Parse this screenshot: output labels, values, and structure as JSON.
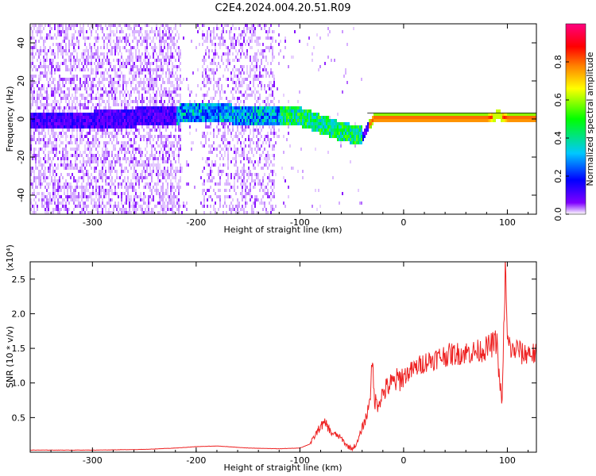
{
  "title": "C2E4.2024.004.20.51.R09",
  "chart_data": [
    {
      "type": "heatmap",
      "xlabel": "Height of straight line (km)",
      "ylabel": "Frequency (Hz)",
      "xlim": [
        -360,
        128
      ],
      "ylim": [
        -50,
        50
      ],
      "xticks": [
        -300,
        -200,
        -100,
        0,
        100
      ],
      "xtick_labels": [
        "-300",
        "-200",
        "-100",
        "0",
        "100"
      ],
      "yticks": [
        -40,
        -20,
        0,
        20,
        40
      ],
      "ytick_labels": [
        "-40",
        "-20",
        "0",
        "20",
        "40"
      ],
      "colorbar": {
        "label": "Normalized spectral amplitude",
        "range": [
          0,
          1
        ],
        "ticks": [
          0.0,
          0.2,
          0.4,
          0.6,
          0.8
        ],
        "tick_labels": [
          "0.0",
          "0.2",
          "0.4",
          "0.6",
          "0.8"
        ],
        "colors": [
          "#ffffff",
          "#7f00ff",
          "#0000ff",
          "#00c8ff",
          "#00ff00",
          "#ffff00",
          "#ff8000",
          "#ff0000",
          "#ff0080"
        ]
      },
      "ridge": {
        "x": [
          -350,
          -300,
          -250,
          -200,
          -150,
          -120,
          -100,
          -80,
          -60,
          -40,
          -30,
          -20,
          0,
          50,
          80,
          90,
          100,
          128
        ],
        "y": [
          0,
          0,
          2,
          4,
          3,
          3,
          2,
          -2,
          -6,
          -8,
          1,
          1,
          1,
          1,
          1,
          3,
          1,
          1
        ]
      },
      "grid": false
    },
    {
      "type": "line",
      "xlabel": "Height of straight line (km)",
      "ylabel": "SNR (10 * v/v)",
      "y_multiplier_label": "(x10⁴)",
      "xlim": [
        -360,
        128
      ],
      "ylim": [
        0,
        2.75
      ],
      "xticks": [
        -300,
        -200,
        -100,
        0,
        100
      ],
      "xtick_labels": [
        "-300",
        "-200",
        "-100",
        "0",
        "100"
      ],
      "yticks": [
        0.5,
        1.0,
        1.5,
        2.0,
        2.5
      ],
      "ytick_labels": [
        "0.5",
        "1.0",
        "1.5",
        "2.0",
        "2.5"
      ],
      "series": [
        {
          "color": "#ee2222",
          "x": [
            -360,
            -300,
            -250,
            -220,
            -200,
            -180,
            -150,
            -120,
            -100,
            -90,
            -80,
            -75,
            -70,
            -65,
            -60,
            -55,
            -50,
            -45,
            -40,
            -35,
            -32,
            -30,
            -28,
            -25,
            -20,
            -15,
            -10,
            -5,
            0,
            10,
            20,
            30,
            40,
            50,
            60,
            70,
            80,
            85,
            90,
            92,
            95,
            98,
            100,
            105,
            110,
            115,
            120,
            128
          ],
          "y": [
            0.03,
            0.03,
            0.04,
            0.06,
            0.08,
            0.09,
            0.06,
            0.05,
            0.06,
            0.12,
            0.38,
            0.42,
            0.28,
            0.25,
            0.2,
            0.1,
            0.05,
            0.12,
            0.35,
            0.55,
            0.9,
            1.25,
            0.75,
            0.7,
            0.85,
            0.95,
            1.0,
            1.05,
            1.1,
            1.2,
            1.3,
            1.35,
            1.4,
            1.42,
            1.44,
            1.45,
            1.5,
            1.55,
            1.6,
            1.1,
            0.7,
            2.7,
            1.6,
            1.45,
            1.5,
            1.4,
            1.45,
            1.4
          ]
        }
      ],
      "grid": false
    }
  ]
}
